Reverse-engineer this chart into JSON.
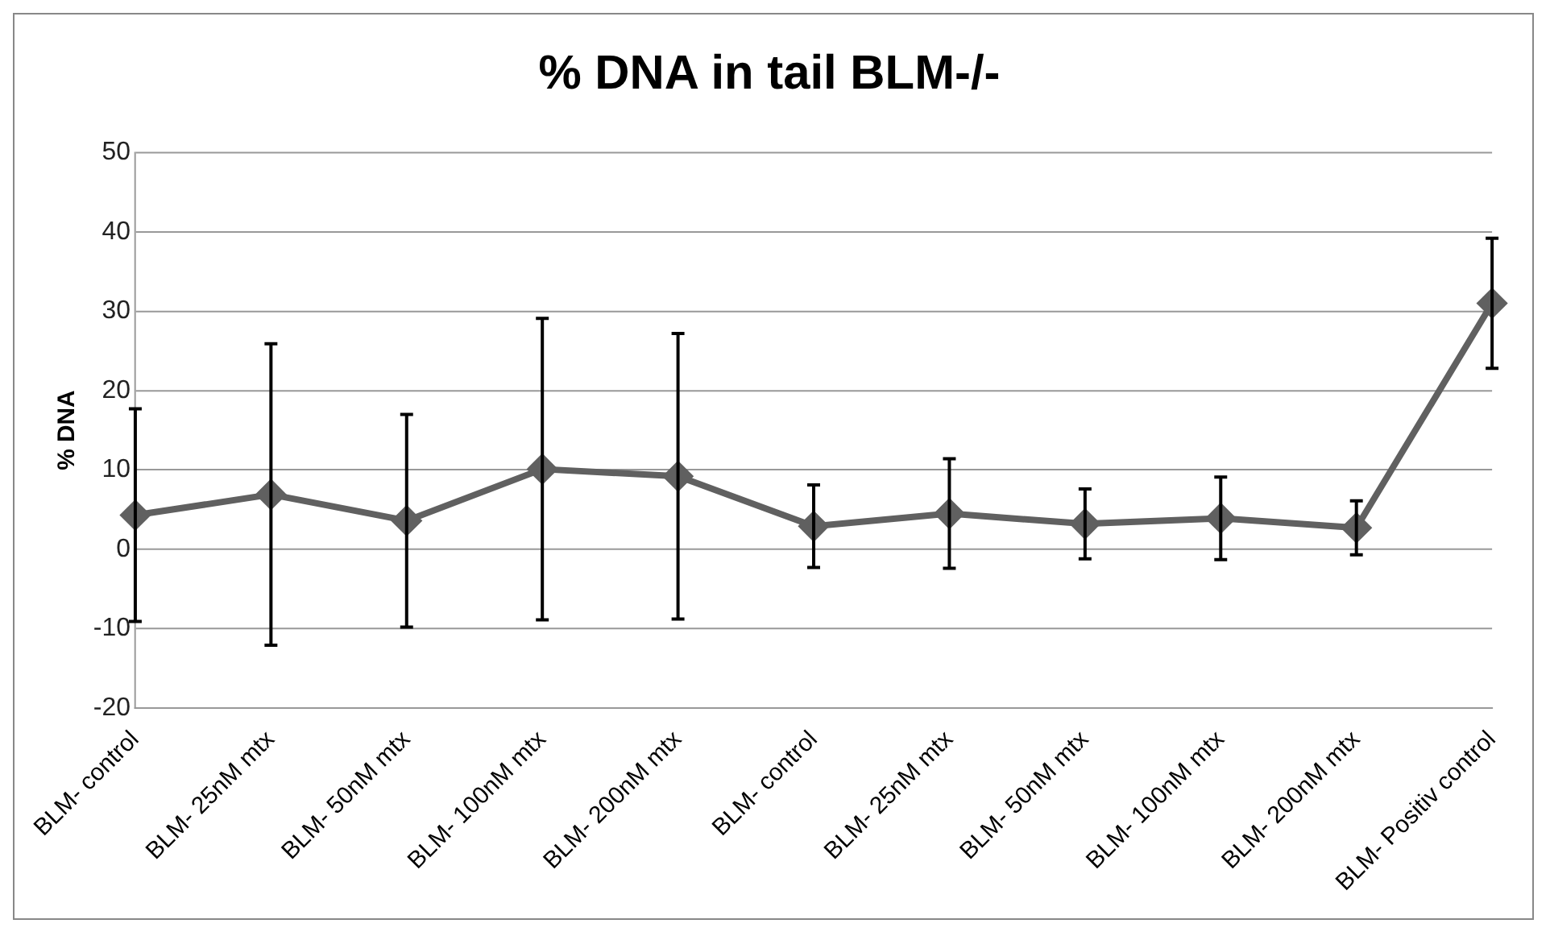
{
  "chart_data": {
    "type": "line",
    "title": "% DNA in tail BLM-/-",
    "ylabel": "% DNA",
    "categories": [
      "BLM- control",
      "BLM- 25nM mtx",
      "BLM- 50nM mtx",
      "BLM- 100nM mtx",
      "BLM- 200nM mtx",
      "BLM- control",
      "BLM- 25nM mtx",
      "BLM- 50nM mtx",
      "BLM- 100nM mtx",
      "BLM- 200nM mtx",
      "BLM- Positiv control"
    ],
    "series": [
      {
        "color": "#606060",
        "values": [
          4.3,
          6.9,
          3.6,
          10.1,
          9.2,
          2.9,
          4.5,
          3.2,
          3.9,
          2.7,
          31
        ],
        "errors": [
          13.4,
          19,
          13.4,
          19,
          18,
          5.2,
          6.9,
          4.4,
          5.2,
          3.4,
          8.2
        ]
      }
    ],
    "ylim": [
      -20,
      50
    ],
    "yticks": [
      -20,
      -10,
      0,
      10,
      20,
      30,
      40,
      50
    ],
    "grid": "y",
    "legend": false,
    "marker": "diamond",
    "line_style": "solid"
  }
}
